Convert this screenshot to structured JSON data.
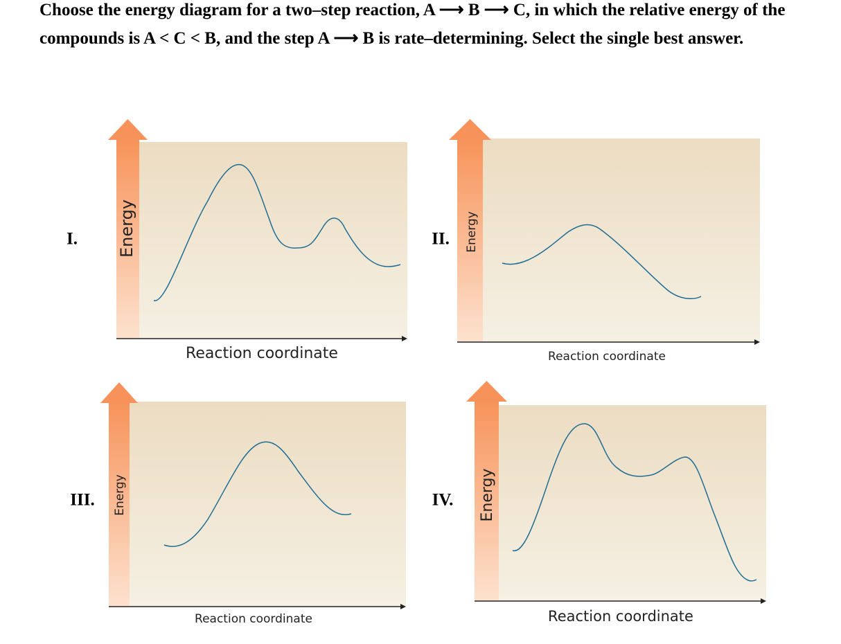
{
  "question": "Choose the energy diagram for a two–step reaction, A ⟶ B ⟶ C, in which the relative energy of the compounds is A < C < B, and the step A ⟶ B is rate–determining. Select the single best answer.",
  "diagrams": [
    {
      "label": "I.",
      "y_axis": "Energy",
      "x_axis": "Reaction coordinate"
    },
    {
      "label": "II.",
      "y_axis": "Energy",
      "x_axis": "Reaction coordinate"
    },
    {
      "label": "III.",
      "y_axis": "Energy",
      "x_axis": "Reaction coordinate"
    },
    {
      "label": "IV.",
      "y_axis": "Energy",
      "x_axis": "Reaction coordinate"
    }
  ]
}
